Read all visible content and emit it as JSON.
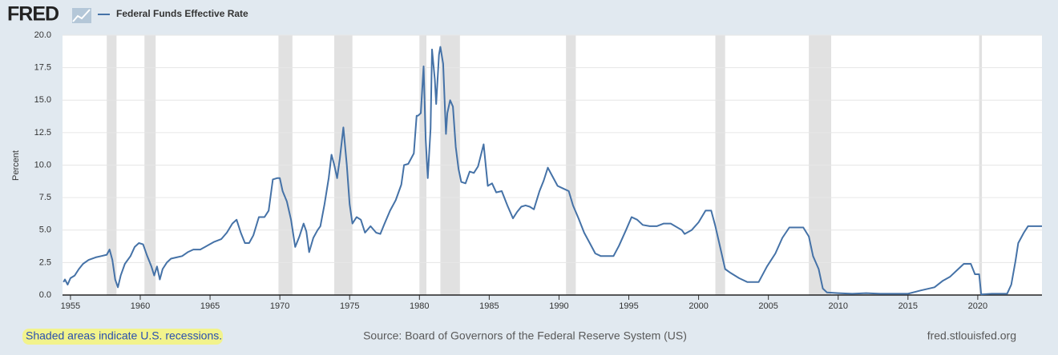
{
  "chart_data": {
    "type": "line",
    "logo": "FRED",
    "ylabel": "Percent",
    "note": "Shaded areas indicate U.S. recessions.",
    "source": "Source: Board of Governors of the Federal Reserve System (US)",
    "site": "fred.stlouisfed.org",
    "xlim": [
      1954.43,
      2024.6
    ],
    "xticks": [
      1955,
      1960,
      1965,
      1970,
      1975,
      1980,
      1985,
      1990,
      1995,
      2000,
      2005,
      2010,
      2015,
      2020
    ],
    "ylim": [
      0,
      20
    ],
    "yticks": [
      {
        "value": 0,
        "label": "0.0"
      },
      2.5,
      {
        "value": 5,
        "label": "5.0"
      },
      7.5,
      {
        "value": 10,
        "label": "10.0"
      },
      12.5,
      {
        "value": 15,
        "label": "15.0"
      },
      17.5,
      {
        "value": 20,
        "label": "20.0"
      }
    ],
    "grid": true,
    "recession_color": "#e1e1e1",
    "recessions": [
      [
        1957.6,
        1958.3
      ],
      [
        1960.3,
        1961.1
      ],
      [
        1969.9,
        1970.9
      ],
      [
        1973.9,
        1975.2
      ],
      [
        1980.0,
        1980.5
      ],
      [
        1981.5,
        1982.9
      ],
      [
        1990.5,
        1991.2
      ],
      [
        2001.2,
        2001.9
      ],
      [
        2007.9,
        2009.5
      ],
      [
        2020.1,
        2020.3
      ]
    ],
    "series": [
      {
        "name": "Federal Funds Effective Rate",
        "color": "#4572a7",
        "x": [
          1954.5,
          1954.6,
          1954.8,
          1955.0,
          1955.3,
          1955.6,
          1955.9,
          1956.3,
          1956.8,
          1957.2,
          1957.6,
          1957.8,
          1958.0,
          1958.2,
          1958.4,
          1958.6,
          1958.9,
          1959.3,
          1959.6,
          1959.9,
          1960.2,
          1960.5,
          1960.8,
          1961.0,
          1961.2,
          1961.4,
          1961.6,
          1961.9,
          1962.2,
          1962.6,
          1963.0,
          1963.4,
          1963.8,
          1964.3,
          1964.8,
          1965.3,
          1965.8,
          1966.2,
          1966.6,
          1966.9,
          1967.2,
          1967.5,
          1967.8,
          1968.1,
          1968.5,
          1968.9,
          1969.2,
          1969.5,
          1969.8,
          1970.0,
          1970.2,
          1970.5,
          1970.8,
          1971.1,
          1971.4,
          1971.7,
          1971.9,
          1972.1,
          1972.4,
          1972.7,
          1972.9,
          1973.2,
          1973.5,
          1973.7,
          1973.9,
          1974.1,
          1974.3,
          1974.55,
          1974.8,
          1975.0,
          1975.2,
          1975.5,
          1975.8,
          1976.1,
          1976.5,
          1976.9,
          1977.2,
          1977.5,
          1977.9,
          1978.3,
          1978.7,
          1978.9,
          1979.2,
          1979.6,
          1979.8,
          1979.9,
          1980.1,
          1980.3,
          1980.45,
          1980.6,
          1980.8,
          1980.9,
          1981.1,
          1981.2,
          1981.4,
          1981.5,
          1981.7,
          1981.9,
          1982.0,
          1982.2,
          1982.4,
          1982.6,
          1982.8,
          1983.0,
          1983.3,
          1983.6,
          1983.9,
          1984.2,
          1984.6,
          1984.9,
          1985.2,
          1985.5,
          1985.9,
          1986.3,
          1986.7,
          1987.0,
          1987.3,
          1987.6,
          1987.9,
          1988.2,
          1988.6,
          1988.9,
          1989.2,
          1989.5,
          1989.9,
          1990.3,
          1990.7,
          1991.0,
          1991.4,
          1991.8,
          1992.2,
          1992.6,
          1993.0,
          1993.5,
          1993.9,
          1994.3,
          1994.8,
          1995.2,
          1995.6,
          1996.0,
          1996.5,
          1997.0,
          1997.5,
          1998.0,
          1998.8,
          1999.0,
          1999.5,
          2000.0,
          2000.5,
          2000.9,
          2001.2,
          2001.5,
          2001.9,
          2002.3,
          2002.9,
          2003.5,
          2004.3,
          2004.9,
          2005.5,
          2006.0,
          2006.5,
          2007.5,
          2007.9,
          2008.2,
          2008.6,
          2008.9,
          2009.2,
          2010.0,
          2011.0,
          2012.0,
          2013.0,
          2014.0,
          2015.0,
          2015.9,
          2016.9,
          2017.5,
          2018.0,
          2018.5,
          2019.0,
          2019.5,
          2019.8,
          2020.1,
          2020.25,
          2021.0,
          2022.1,
          2022.4,
          2022.7,
          2022.9,
          2023.3,
          2023.6,
          2024.6
        ],
        "values": [
          1.0,
          1.2,
          0.8,
          1.3,
          1.5,
          2.0,
          2.4,
          2.7,
          2.9,
          3.0,
          3.1,
          3.5,
          2.7,
          1.2,
          0.6,
          1.5,
          2.4,
          3.0,
          3.7,
          4.0,
          3.9,
          3.0,
          2.2,
          1.5,
          2.2,
          1.2,
          2.0,
          2.5,
          2.8,
          2.9,
          3.0,
          3.3,
          3.5,
          3.5,
          3.8,
          4.1,
          4.3,
          4.8,
          5.5,
          5.8,
          4.8,
          4.0,
          4.0,
          4.6,
          6.0,
          6.0,
          6.5,
          8.9,
          9.0,
          9.0,
          8.0,
          7.2,
          5.8,
          3.7,
          4.5,
          5.5,
          4.9,
          3.3,
          4.4,
          5.0,
          5.3,
          7.0,
          9.0,
          10.8,
          10.0,
          9.0,
          10.5,
          12.9,
          10.0,
          7.0,
          5.5,
          6.0,
          5.8,
          4.8,
          5.3,
          4.8,
          4.7,
          5.5,
          6.5,
          7.3,
          8.5,
          10.0,
          10.1,
          10.9,
          13.8,
          13.8,
          14.0,
          17.6,
          12.0,
          9.0,
          12.8,
          18.9,
          16.6,
          14.7,
          18.5,
          19.1,
          17.8,
          12.4,
          14.0,
          15.0,
          14.5,
          11.4,
          9.7,
          8.7,
          8.6,
          9.5,
          9.4,
          9.9,
          11.6,
          8.4,
          8.6,
          7.9,
          8.0,
          6.9,
          5.9,
          6.4,
          6.8,
          6.9,
          6.8,
          6.6,
          8.0,
          8.8,
          9.8,
          9.2,
          8.4,
          8.2,
          8.0,
          6.9,
          5.9,
          4.8,
          4.0,
          3.2,
          3.0,
          3.0,
          3.0,
          3.8,
          5.0,
          6.0,
          5.8,
          5.4,
          5.3,
          5.3,
          5.5,
          5.5,
          5.0,
          4.7,
          5.0,
          5.6,
          6.5,
          6.5,
          5.3,
          3.9,
          2.0,
          1.7,
          1.3,
          1.0,
          1.0,
          2.2,
          3.2,
          4.4,
          5.2,
          5.2,
          4.5,
          3.0,
          2.0,
          0.5,
          0.2,
          0.15,
          0.1,
          0.15,
          0.1,
          0.1,
          0.1,
          0.35,
          0.6,
          1.1,
          1.4,
          1.9,
          2.4,
          2.4,
          1.6,
          1.6,
          0.05,
          0.1,
          0.1,
          0.8,
          2.6,
          4.0,
          4.8,
          5.3,
          5.3
        ]
      }
    ]
  }
}
